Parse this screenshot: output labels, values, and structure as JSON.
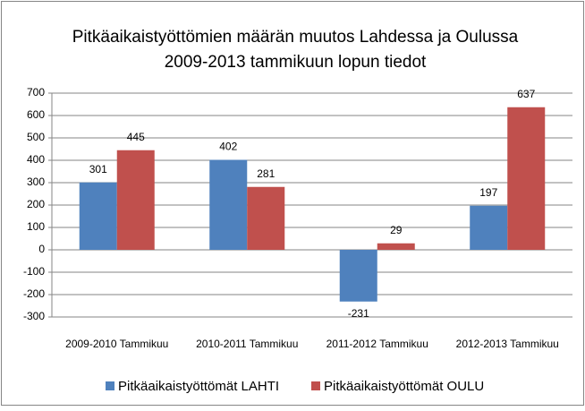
{
  "chart_data": {
    "type": "bar",
    "title": [
      "Pitkäaikaistyöttömien määrän muutos Lahdessa ja Oulussa",
      "2009-2013 tammikuun lopun tiedot"
    ],
    "categories": [
      "2009-2010 Tammikuu",
      "2010-2011 Tammikuu",
      "2011-2012 Tammikuu",
      "2012-2013 Tammikuu"
    ],
    "series": [
      {
        "name": "Pitkäaikaistyöttömät LAHTI",
        "color": "#4f81bd",
        "values": [
          301,
          402,
          -231,
          197
        ]
      },
      {
        "name": "Pitkäaikaistyöttömät OULU",
        "color": "#c0504d",
        "values": [
          445,
          281,
          29,
          637
        ]
      }
    ],
    "ylim": [
      -300,
      700
    ],
    "yticks": [
      -300,
      -200,
      -100,
      0,
      100,
      200,
      300,
      400,
      500,
      600,
      700
    ],
    "grid": true,
    "legend": "bottom"
  }
}
